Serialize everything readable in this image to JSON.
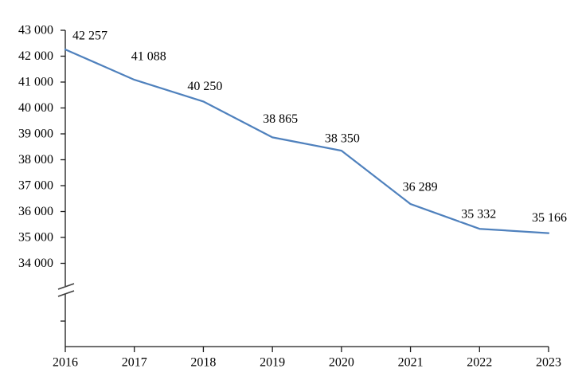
{
  "page": {
    "background_color": "#ffffff"
  },
  "chart_data": {
    "type": "line",
    "title": "",
    "xlabel": "",
    "ylabel": "",
    "categories": [
      "2016",
      "2017",
      "2018",
      "2019",
      "2020",
      "2021",
      "2022",
      "2023"
    ],
    "series": [
      {
        "name": "value",
        "values": [
          42257,
          41088,
          40250,
          38865,
          38350,
          36289,
          35332,
          35166
        ],
        "data_labels": [
          "42 257",
          "41 088",
          "40 250",
          "38 865",
          "38 350",
          "36 289",
          "35 332",
          "35 166"
        ],
        "color": "#4F81BD"
      }
    ],
    "y_axis": {
      "ticks": [
        {
          "value": 43000,
          "label": "43 000"
        },
        {
          "value": 42000,
          "label": "42 000"
        },
        {
          "value": 41000,
          "label": "41 000"
        },
        {
          "value": 40000,
          "label": "40 000"
        },
        {
          "value": 39000,
          "label": "39 000"
        },
        {
          "value": 38000,
          "label": "38 000"
        },
        {
          "value": 37000,
          "label": "37 000"
        },
        {
          "value": 36000,
          "label": "36 000"
        },
        {
          "value": 35000,
          "label": "35 000"
        },
        {
          "value": 34000,
          "label": "34 000"
        }
      ],
      "display_range": [
        34000,
        43000
      ],
      "axis_break": true,
      "unlabeled_tick_below_break": true
    },
    "legend": "none",
    "grid": false,
    "colors": {
      "line": "#4F81BD",
      "axis": "#1a1a1a",
      "break_mark": "#3f3f3f",
      "text": "#000000",
      "label_background": "#ffffff"
    }
  }
}
